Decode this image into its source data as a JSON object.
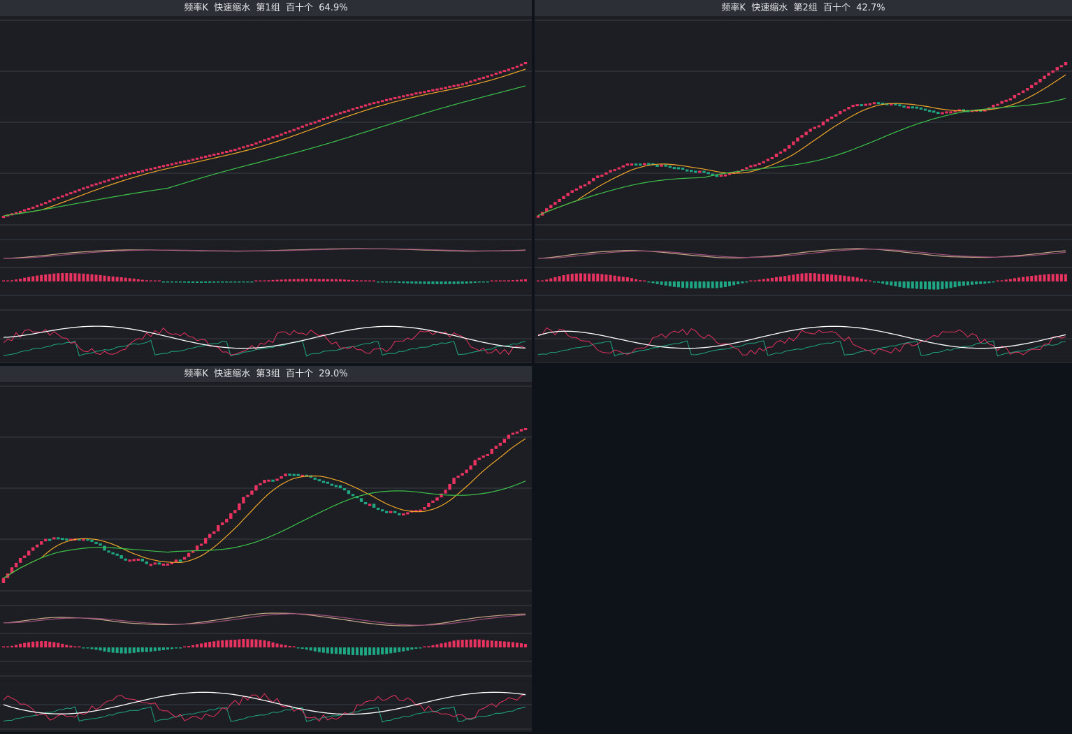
{
  "panels": [
    {
      "title": "频率K  快速缩水  第1组  百十个  64.9%"
    },
    {
      "title": "频率K  快速缩水  第2组  百十个  42.7%"
    },
    {
      "title": "频率K  快速缩水  第3组  百十个  29.0%"
    }
  ],
  "colors": {
    "background": "#1c1e23",
    "header": "#2c2f35",
    "up": "#e8325f",
    "down": "#1fa784",
    "ma_short": "#f0a529",
    "ma_long": "#3cc24a",
    "dif": "#c9a98a",
    "dea": "#9a4f78",
    "kdj_white": "#ffffff",
    "kdj_red": "#e8325f",
    "kdj_green": "#1fa784",
    "grid": "#3a3d44"
  },
  "chart_data": [
    {
      "type": "candlestick",
      "title": "频率K  快速缩水  第1组  百十个  64.9%",
      "candles": 125,
      "trend": 1.0,
      "wobble": 0.05,
      "seed": 11
    },
    {
      "type": "candlestick",
      "title": "频率K  快速缩水  第2组  百十个  42.7%",
      "candles": 125,
      "trend": 0.75,
      "wobble": 0.22,
      "seed": 23
    },
    {
      "type": "candlestick",
      "title": "频率K  快速缩水  第3组  百十个  29.0%",
      "candles": 125,
      "trend": 0.6,
      "wobble": 0.35,
      "seed": 37
    }
  ]
}
